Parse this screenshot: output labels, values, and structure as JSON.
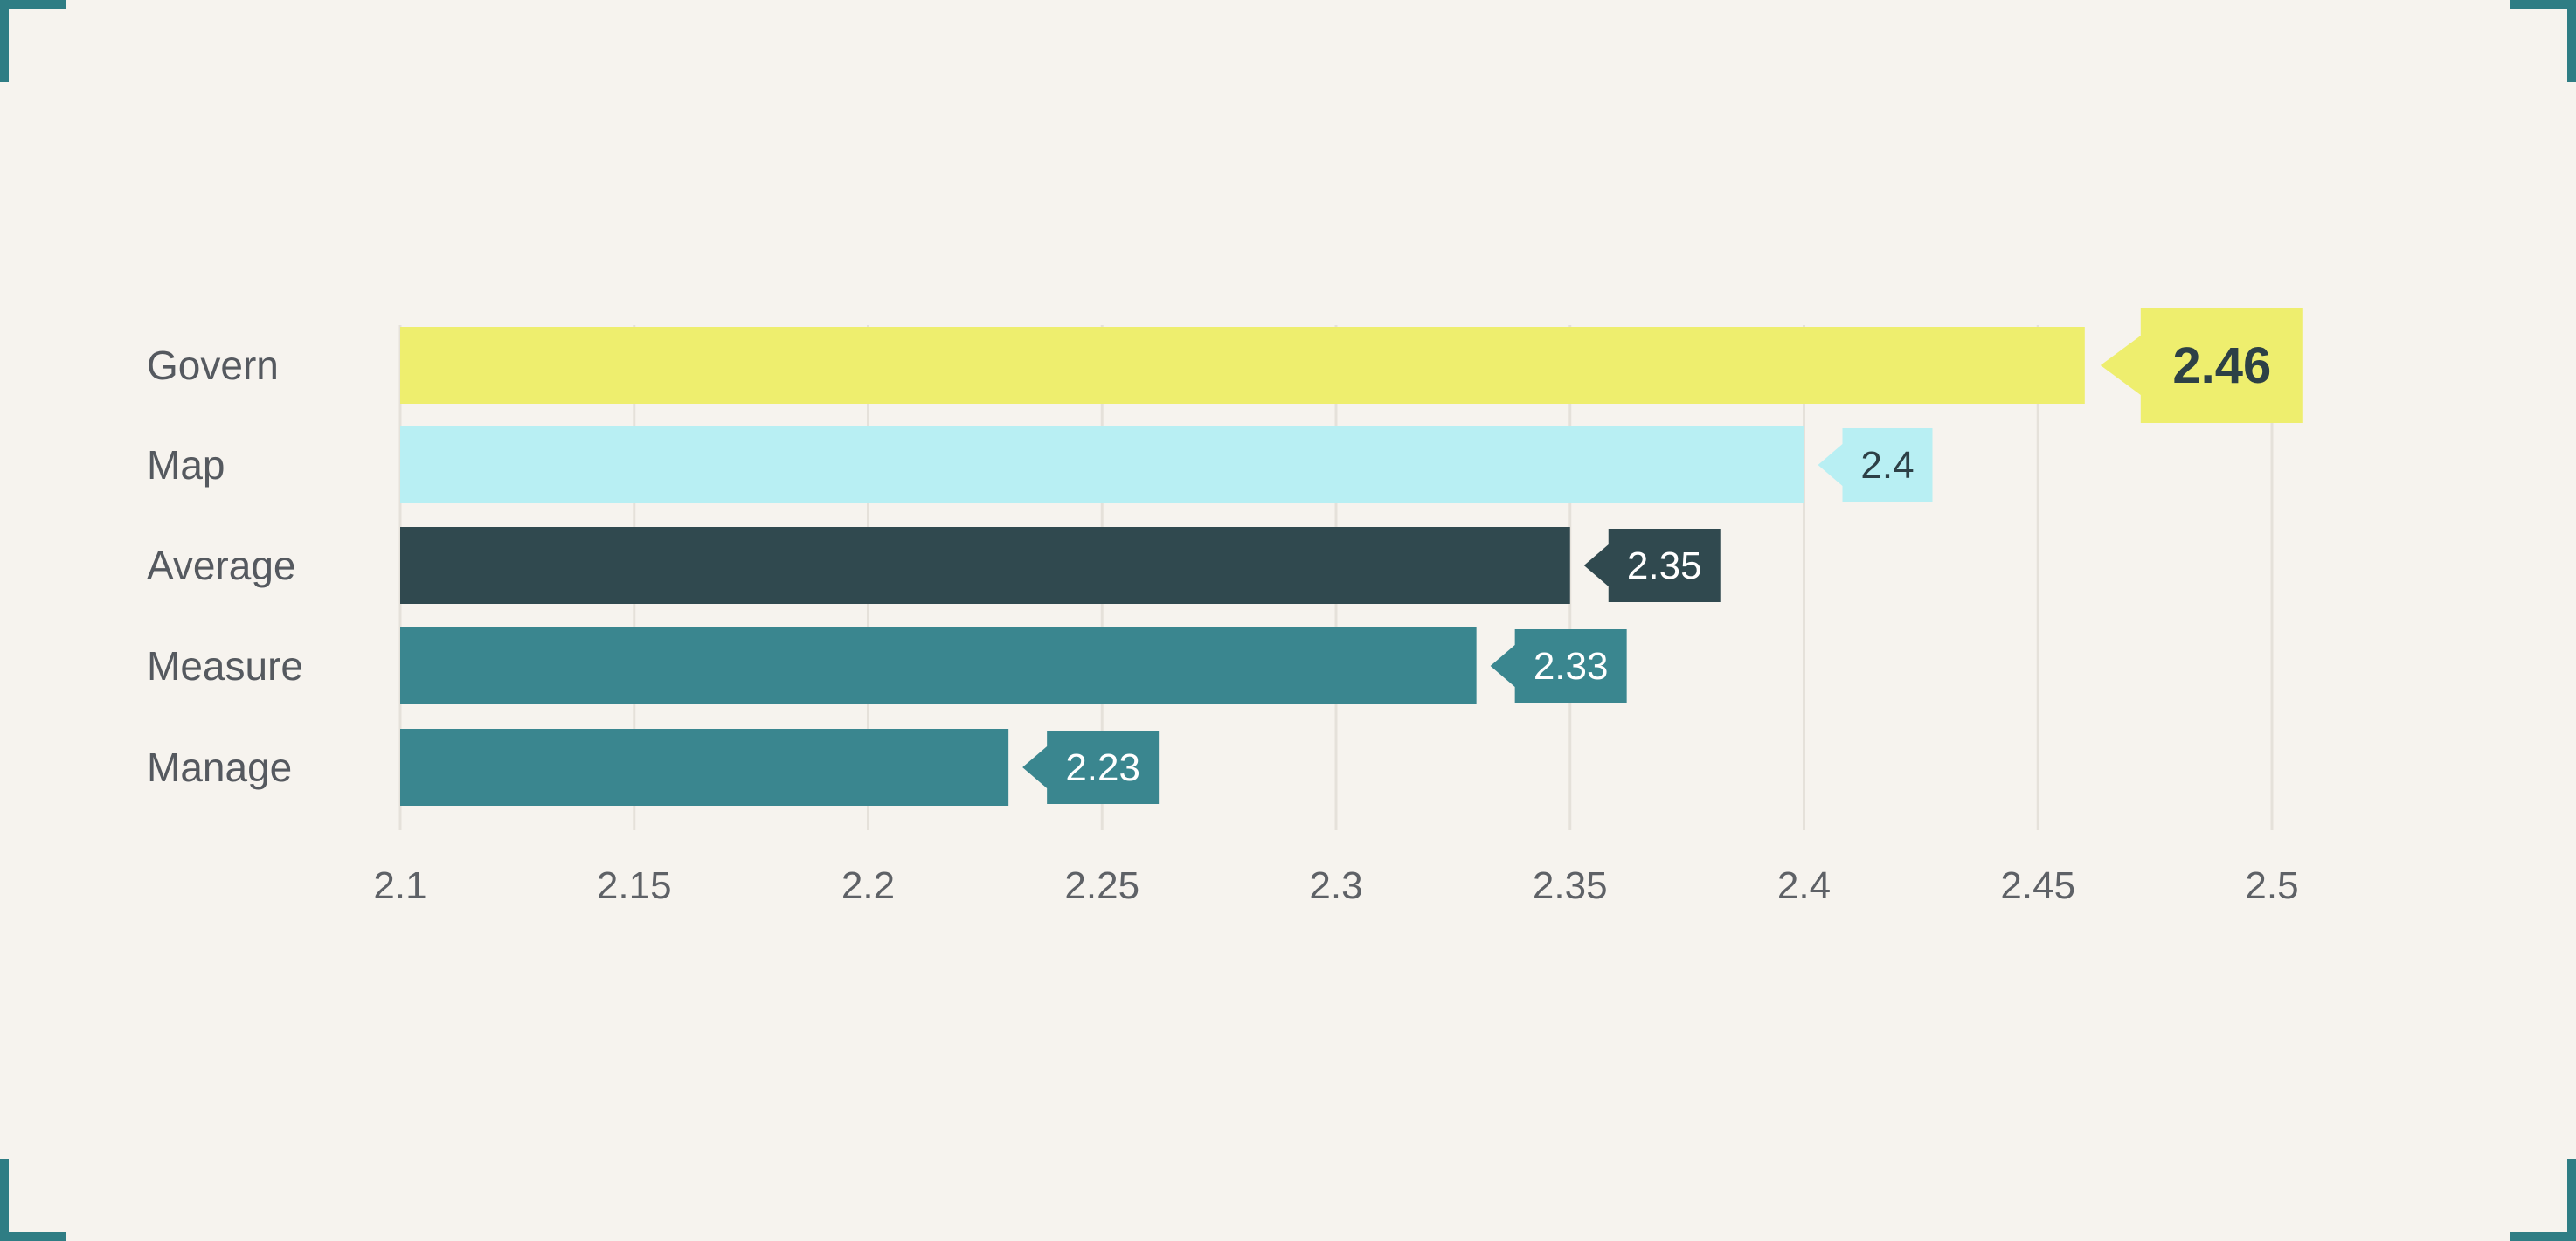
{
  "theme": {
    "background": "#f6f3ee",
    "frame_accent": "#2f7d84",
    "grid_color": "#e5e1da"
  },
  "chart_data": {
    "type": "bar",
    "orientation": "horizontal",
    "categories": [
      "Govern",
      "Map",
      "Average",
      "Measure",
      "Manage"
    ],
    "values": [
      2.46,
      2.4,
      2.35,
      2.33,
      2.23
    ],
    "value_labels": [
      "2.46",
      "2.4",
      "2.35",
      "2.33",
      "2.23"
    ],
    "colors": [
      "#eeee6e",
      "#b8eff3",
      "#30494f",
      "#3a868f",
      "#3a868f"
    ],
    "label_text_colors": [
      "#2d4046",
      "#2d4046",
      "#ffffff",
      "#ffffff",
      "#ffffff"
    ],
    "highlight_index": 0,
    "xlim": [
      2.1,
      2.5
    ],
    "xticks": [
      2.1,
      2.15,
      2.2,
      2.25,
      2.3,
      2.35,
      2.4,
      2.45,
      2.5
    ],
    "xtick_labels": [
      "2.1",
      "2.15",
      "2.2",
      "2.25",
      "2.3",
      "2.35",
      "2.4",
      "2.45",
      "2.5"
    ],
    "grid": true,
    "legend": "none",
    "title": "",
    "xlabel": "",
    "ylabel": ""
  }
}
